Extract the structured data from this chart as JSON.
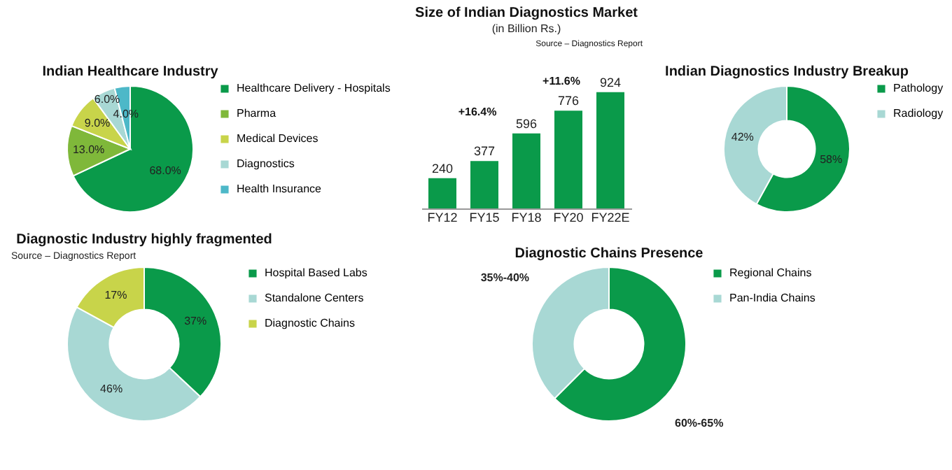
{
  "chart_data": [
    {
      "type": "pie",
      "title": "Indian Healthcare Industry",
      "categories": [
        "Healthcare Delivery - Hospitals",
        "Pharma",
        "Medical Devices",
        "Diagnostics",
        "Health Insurance"
      ],
      "values": [
        68.0,
        13.0,
        9.0,
        6.0,
        4.0
      ],
      "colors": [
        "#0a9a4a",
        "#7fb83a",
        "#c8d44a",
        "#a8d8d4",
        "#4db8c8"
      ],
      "value_labels": [
        "68.0%",
        "13.0%",
        "9.0%",
        "6.0%",
        "4.0%"
      ],
      "legend": "right"
    },
    {
      "type": "bar",
      "title": "Size of Indian Diagnostics  Market",
      "subtitle": "(in Billion Rs.)",
      "categories": [
        "FY12",
        "FY15",
        "FY18",
        "FY20",
        "FY22E"
      ],
      "values": [
        240,
        377,
        596,
        776,
        924
      ],
      "color": "#0a9a4a",
      "data_labels": true,
      "tick_labels": "x",
      "annotations": [
        "Source – Diagnostics Report",
        "+16.4%",
        "+11.6%"
      ]
    },
    {
      "type": "donut",
      "title": "Indian Diagnostics Industry Breakup",
      "categories": [
        "Pathology",
        "Radiology"
      ],
      "values": [
        58,
        42
      ],
      "colors": [
        "#0a9a4a",
        "#a8d8d4"
      ],
      "value_labels": [
        "58%",
        "42%"
      ],
      "legend": "right"
    },
    {
      "type": "donut",
      "title": "Diagnostic Industry highly fragmented",
      "categories": [
        "Hospital Based Labs",
        "Standalone Centers",
        "Diagnostic Chains"
      ],
      "values": [
        37,
        46,
        17
      ],
      "colors": [
        "#0a9a4a",
        "#a8d8d4",
        "#c8d44a"
      ],
      "value_labels": [
        "37%",
        "46%",
        "17%"
      ],
      "legend": "right",
      "annotations": [
        "Source – Diagnostics Report"
      ]
    },
    {
      "type": "donut",
      "title": "Diagnostic Chains Presence",
      "categories": [
        "Regional Chains",
        "Pan-India Chains"
      ],
      "values": [
        62.5,
        37.5
      ],
      "colors": [
        "#0a9a4a",
        "#a8d8d4"
      ],
      "legend": "right",
      "annotations": [
        "60%-65%",
        "35%-40%"
      ]
    }
  ]
}
